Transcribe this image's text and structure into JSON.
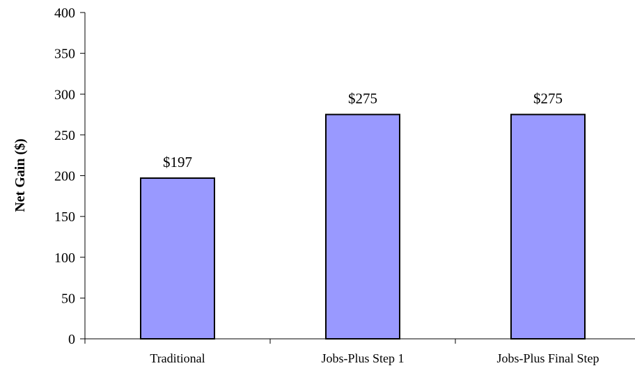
{
  "chart_data": {
    "type": "bar",
    "categories": [
      "Traditional",
      "Jobs-Plus Step 1",
      "Jobs-Plus Final Step"
    ],
    "values": [
      197,
      275,
      275
    ],
    "data_labels": [
      "$197",
      "$275",
      "$275"
    ],
    "title": "",
    "xlabel": "",
    "ylabel": "Net Gain ($)",
    "ylim": [
      0,
      400
    ],
    "yticks": [
      0,
      50,
      100,
      150,
      200,
      250,
      300,
      350,
      400
    ],
    "grid": false,
    "legend": "none",
    "colors": {
      "bar_fill": "#9999ff",
      "bar_stroke": "#000000",
      "axis": "#000000"
    }
  }
}
